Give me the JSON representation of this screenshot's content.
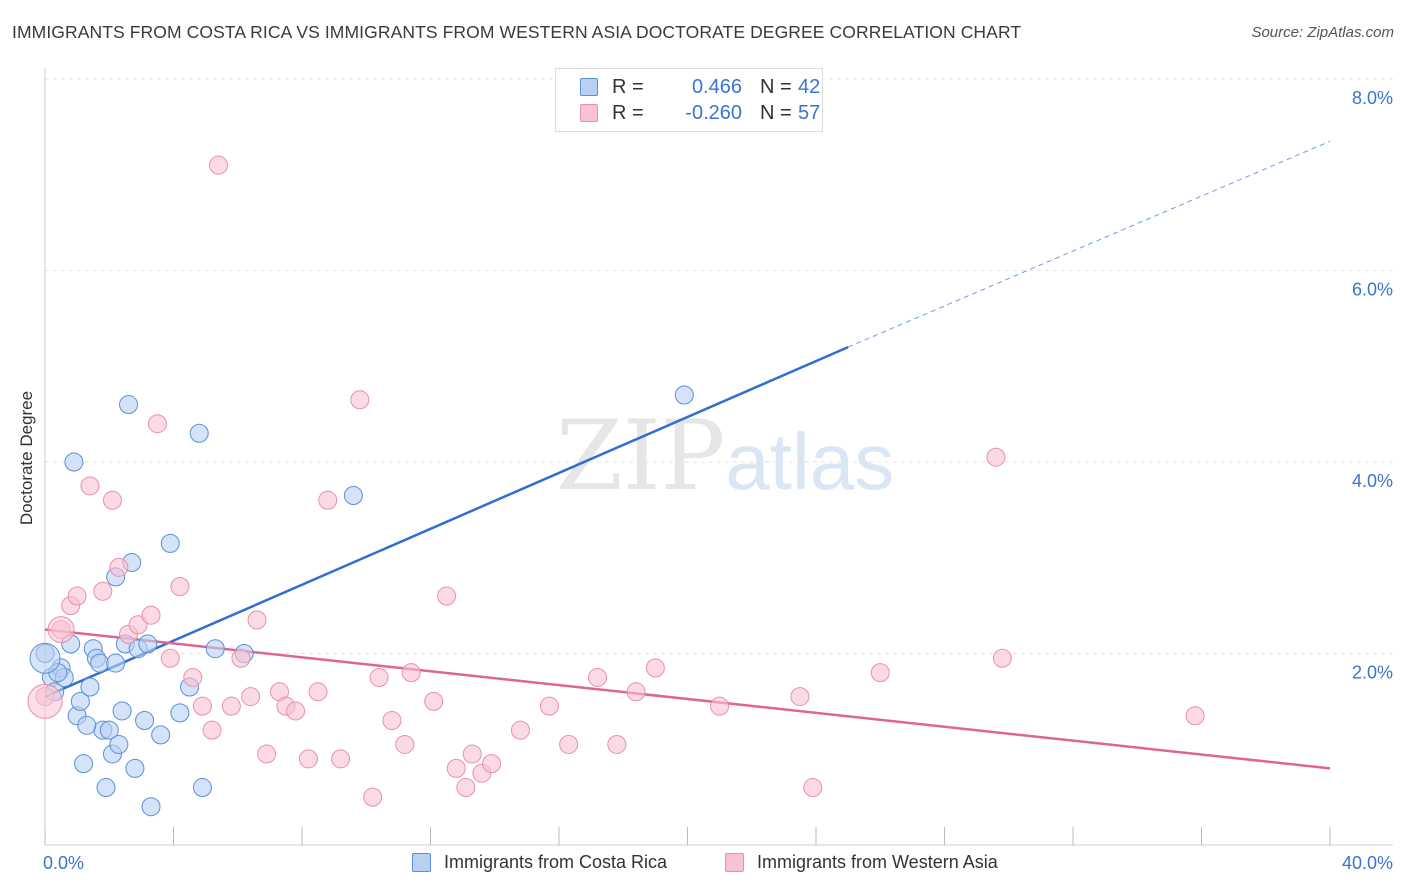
{
  "title": "IMMIGRANTS FROM COSTA RICA VS IMMIGRANTS FROM WESTERN ASIA DOCTORATE DEGREE CORRELATION CHART",
  "source": "Source: ZipAtlas.com",
  "watermark": {
    "zip": "ZIP",
    "atlas": "atlas"
  },
  "colors": {
    "blue_fill": "#b8d0f2",
    "blue_stroke": "#5b8fd8",
    "blue_line": "#2f6fd0",
    "pink_fill": "#f8c2d2",
    "pink_stroke": "#e890aa",
    "pink_line": "#e0658f",
    "value_text": "#3b74d0",
    "grid": "#e3e3e3"
  },
  "legend": {
    "rows": [
      {
        "r_label": "R =",
        "r_value": "0.466",
        "n_label": "N =",
        "n_value": "42"
      },
      {
        "r_label": "R =",
        "r_value": "-0.260",
        "n_label": "N =",
        "n_value": "57"
      }
    ]
  },
  "chart_data": {
    "type": "scatter",
    "title": "IMMIGRANTS FROM COSTA RICA VS IMMIGRANTS FROM WESTERN ASIA DOCTORATE DEGREE CORRELATION CHART",
    "xlabel": "",
    "ylabel": "Doctorate Degree",
    "xlim": [
      0,
      40
    ],
    "ylim": [
      0,
      8
    ],
    "x_tick_labels": [
      "0.0%",
      "40.0%"
    ],
    "y_ticks": [
      2,
      4,
      6,
      8
    ],
    "y_tick_labels": [
      "2.0%",
      "4.0%",
      "6.0%",
      "8.0%"
    ],
    "grid": "horizontal-dashed",
    "legend_position": "top-center",
    "series": [
      {
        "name": "Immigrants from Costa Rica",
        "color": "#5b8fd8",
        "trend": {
          "x": [
            0,
            25
          ],
          "y": [
            1.55,
            5.2
          ],
          "dashed_extension_to": [
            40,
            7.35
          ]
        },
        "points": [
          [
            0.0,
            2.0
          ],
          [
            0.2,
            1.75
          ],
          [
            0.3,
            1.6
          ],
          [
            0.5,
            1.85
          ],
          [
            0.6,
            1.75
          ],
          [
            0.8,
            2.1
          ],
          [
            0.9,
            4.0
          ],
          [
            1.0,
            1.35
          ],
          [
            1.1,
            1.5
          ],
          [
            1.2,
            0.85
          ],
          [
            1.4,
            1.65
          ],
          [
            1.5,
            2.05
          ],
          [
            1.6,
            1.95
          ],
          [
            1.7,
            1.9
          ],
          [
            1.8,
            1.2
          ],
          [
            1.9,
            0.6
          ],
          [
            2.0,
            1.2
          ],
          [
            2.1,
            0.95
          ],
          [
            2.2,
            2.8
          ],
          [
            2.3,
            1.05
          ],
          [
            2.4,
            1.4
          ],
          [
            2.5,
            2.1
          ],
          [
            2.6,
            4.6
          ],
          [
            2.7,
            2.95
          ],
          [
            2.8,
            0.8
          ],
          [
            2.9,
            2.05
          ],
          [
            3.1,
            1.3
          ],
          [
            3.2,
            2.1
          ],
          [
            3.6,
            1.15
          ],
          [
            3.9,
            3.15
          ],
          [
            4.2,
            1.38
          ],
          [
            4.5,
            1.65
          ],
          [
            4.8,
            4.3
          ],
          [
            4.9,
            0.6
          ],
          [
            5.3,
            2.05
          ],
          [
            6.2,
            2.0
          ],
          [
            9.6,
            3.65
          ],
          [
            19.9,
            4.7
          ],
          [
            3.3,
            0.4
          ],
          [
            0.4,
            1.8
          ],
          [
            2.2,
            1.9
          ],
          [
            1.3,
            1.25
          ]
        ]
      },
      {
        "name": "Immigrants from Western Asia",
        "color": "#e890aa",
        "trend": {
          "x": [
            0,
            40
          ],
          "y": [
            2.25,
            0.8
          ]
        },
        "points": [
          [
            0.0,
            1.55
          ],
          [
            0.5,
            2.25
          ],
          [
            0.8,
            2.5
          ],
          [
            1.0,
            2.6
          ],
          [
            1.4,
            3.75
          ],
          [
            1.8,
            2.65
          ],
          [
            2.1,
            3.6
          ],
          [
            2.3,
            2.9
          ],
          [
            2.6,
            2.2
          ],
          [
            2.9,
            2.3
          ],
          [
            3.3,
            2.4
          ],
          [
            3.5,
            4.4
          ],
          [
            3.9,
            1.95
          ],
          [
            4.2,
            2.7
          ],
          [
            4.6,
            1.75
          ],
          [
            4.9,
            1.45
          ],
          [
            5.2,
            1.2
          ],
          [
            5.4,
            7.1
          ],
          [
            5.8,
            1.45
          ],
          [
            6.1,
            1.95
          ],
          [
            6.4,
            1.55
          ],
          [
            6.6,
            2.35
          ],
          [
            6.9,
            0.95
          ],
          [
            7.3,
            1.6
          ],
          [
            7.5,
            1.45
          ],
          [
            7.8,
            1.4
          ],
          [
            8.2,
            0.9
          ],
          [
            8.5,
            1.6
          ],
          [
            8.8,
            3.6
          ],
          [
            9.2,
            0.9
          ],
          [
            9.8,
            4.65
          ],
          [
            10.2,
            0.5
          ],
          [
            10.4,
            1.75
          ],
          [
            10.8,
            1.3
          ],
          [
            11.2,
            1.05
          ],
          [
            11.4,
            1.8
          ],
          [
            12.1,
            1.5
          ],
          [
            12.5,
            2.6
          ],
          [
            12.8,
            0.8
          ],
          [
            13.1,
            0.6
          ],
          [
            13.3,
            0.95
          ],
          [
            13.6,
            0.75
          ],
          [
            13.9,
            0.85
          ],
          [
            14.8,
            1.2
          ],
          [
            15.7,
            1.45
          ],
          [
            16.3,
            1.05
          ],
          [
            17.2,
            1.75
          ],
          [
            17.8,
            1.05
          ],
          [
            18.4,
            1.6
          ],
          [
            19.0,
            1.85
          ],
          [
            21.0,
            1.45
          ],
          [
            23.5,
            1.55
          ],
          [
            23.9,
            0.6
          ],
          [
            26.0,
            1.8
          ],
          [
            29.8,
            1.95
          ],
          [
            29.6,
            4.05
          ],
          [
            35.8,
            1.35
          ]
        ]
      }
    ]
  }
}
